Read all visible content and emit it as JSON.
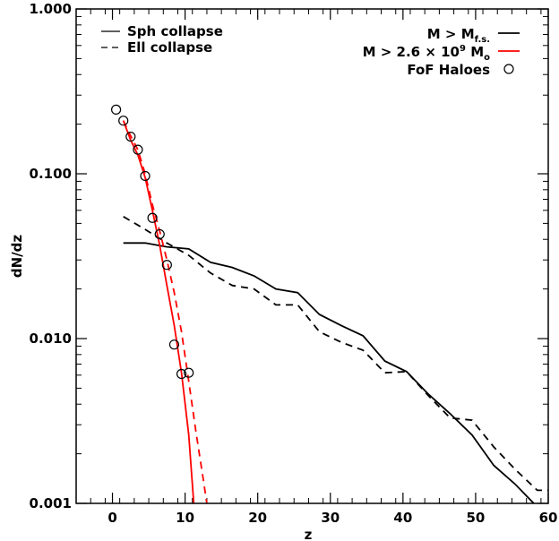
{
  "chart_data": {
    "type": "line",
    "xlabel": "z",
    "ylabel": "dN/dz",
    "xlim": [
      -5,
      60
    ],
    "ylim": [
      0.001,
      1.0
    ],
    "yscale": "log",
    "grid": false,
    "x_ticks": [
      0,
      10,
      20,
      30,
      40,
      50,
      60
    ],
    "x_tick_labels": [
      "0",
      "10",
      "20",
      "30",
      "40",
      "50",
      "60"
    ],
    "y_ticks": [
      0.001,
      0.01,
      0.1,
      1.0
    ],
    "y_tick_labels": [
      "0.001",
      "0.010",
      "0.100",
      "1.000"
    ],
    "legend_left": {
      "placement": "top-left",
      "entries": [
        {
          "label": "Sph collapse",
          "style": "solid"
        },
        {
          "label": "Ell collapse",
          "style": "dashed"
        }
      ]
    },
    "legend_right": {
      "placement": "top-right",
      "entries": [
        {
          "label_main": "M > M",
          "label_sub": "f.s.",
          "color": "#000000",
          "marker": "line"
        },
        {
          "label_main": "M > 2.6 × 10",
          "label_sup": "9",
          "label_tail": " M",
          "label_sub": "o",
          "color": "#ff0000",
          "marker": "line"
        },
        {
          "label_main": "FoF Haloes",
          "color": "#000000",
          "marker": "circle"
        }
      ]
    },
    "series": [
      {
        "color": "#000000",
        "style": "solid",
        "x": [
          1.5,
          4.5,
          7.5,
          10.5,
          13.5,
          16.5,
          19.5,
          22.5,
          25.5,
          28.5,
          31.5,
          34.5,
          37.5,
          40.5,
          43.5,
          46.5,
          49.5,
          52.5,
          55.5,
          58.5
        ],
        "y": [
          0.038,
          0.038,
          0.036,
          0.035,
          0.029,
          0.027,
          0.024,
          0.02,
          0.019,
          0.014,
          0.012,
          0.0104,
          0.0073,
          0.0063,
          0.0046,
          0.0035,
          0.0026,
          0.0017,
          0.0013,
          0.00095
        ]
      },
      {
        "color": "#000000",
        "style": "dashed",
        "x": [
          1.5,
          4.5,
          7.5,
          10.5,
          13.5,
          16.5,
          19.5,
          22.5,
          25.5,
          28.5,
          31.5,
          34.5,
          37.5,
          40.5,
          43.5,
          46.5,
          49.5,
          52.5,
          55.5,
          58.5,
          60
        ],
        "y": [
          0.055,
          0.046,
          0.038,
          0.032,
          0.025,
          0.021,
          0.02,
          0.016,
          0.016,
          0.011,
          0.0095,
          0.0085,
          0.0062,
          0.0063,
          0.0045,
          0.0033,
          0.0032,
          0.0022,
          0.0016,
          0.0012,
          0.0012
        ]
      },
      {
        "color": "#ff0000",
        "style": "solid",
        "x": [
          1.5,
          2.5,
          3.5,
          4.5,
          5.5,
          6.5,
          7.5,
          8.5,
          9.5,
          10.5,
          11.2
        ],
        "y": [
          0.21,
          0.16,
          0.13,
          0.095,
          0.06,
          0.037,
          0.021,
          0.012,
          0.0062,
          0.0026,
          0.001
        ]
      },
      {
        "color": "#ff0000",
        "style": "dashed",
        "x": [
          1.5,
          2.5,
          3.5,
          4.5,
          5.5,
          6.5,
          7.5,
          8.5,
          9.5,
          10.5,
          11.5,
          12.5,
          13.0
        ],
        "y": [
          0.21,
          0.17,
          0.14,
          0.1,
          0.065,
          0.045,
          0.03,
          0.019,
          0.011,
          0.0055,
          0.0027,
          0.0014,
          0.001
        ]
      },
      {
        "type": "scatter",
        "marker": "circle",
        "color": "#000000",
        "x": [
          0.5,
          1.5,
          2.5,
          3.5,
          4.5,
          5.5,
          6.5,
          7.5,
          8.5,
          9.5,
          10.5
        ],
        "y": [
          0.245,
          0.21,
          0.168,
          0.14,
          0.097,
          0.054,
          0.043,
          0.028,
          0.0092,
          0.0061,
          0.0062
        ]
      }
    ]
  }
}
